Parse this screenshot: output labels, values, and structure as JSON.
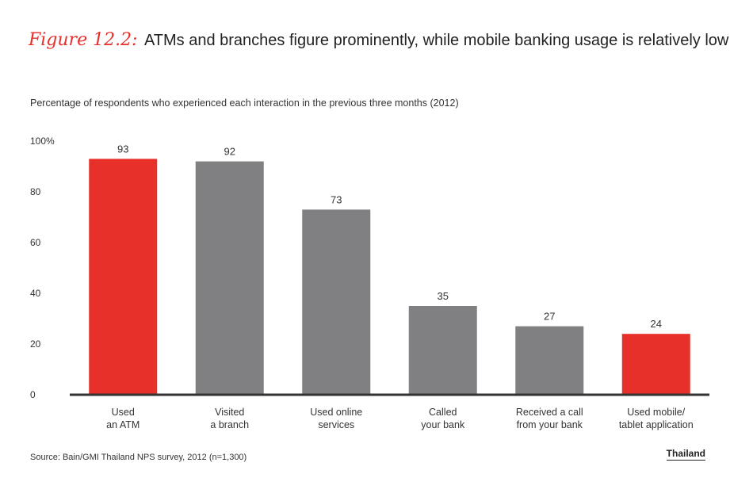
{
  "header": {
    "figure_label": "Figure 12.2:",
    "title": "ATMs and branches figure prominently, while mobile banking usage is relatively low"
  },
  "subtitle": "Percentage of respondents who experienced each interaction in the previous three months (2012)",
  "footer": {
    "source": "Source: Bain/GMI Thailand NPS survey, 2012 (n=1,300)",
    "region": "Thailand"
  },
  "colors": {
    "highlight": "#e8302a",
    "normal": "#808083",
    "axis": "#333333"
  },
  "chart_data": {
    "type": "bar",
    "title": "ATMs and branches figure prominently, while mobile banking usage is relatively low",
    "ylabel": "",
    "xlabel": "",
    "ylim": [
      0,
      100
    ],
    "yticks": [
      {
        "value": 0,
        "label": "0"
      },
      {
        "value": 20,
        "label": "20"
      },
      {
        "value": 40,
        "label": "40"
      },
      {
        "value": 60,
        "label": "60"
      },
      {
        "value": 80,
        "label": "80"
      },
      {
        "value": 100,
        "label": "100%"
      }
    ],
    "categories": [
      [
        "Used",
        "an ATM"
      ],
      [
        "Visited",
        "a branch"
      ],
      [
        "Used online",
        "services"
      ],
      [
        "Called",
        "your bank"
      ],
      [
        "Received a call",
        "from your bank"
      ],
      [
        "Used mobile/",
        "tablet application"
      ]
    ],
    "values": [
      93,
      92,
      73,
      35,
      27,
      24
    ],
    "value_labels": [
      "93",
      "92",
      "73",
      "35",
      "27",
      "24"
    ],
    "highlighted": [
      true,
      false,
      false,
      false,
      false,
      true
    ]
  }
}
